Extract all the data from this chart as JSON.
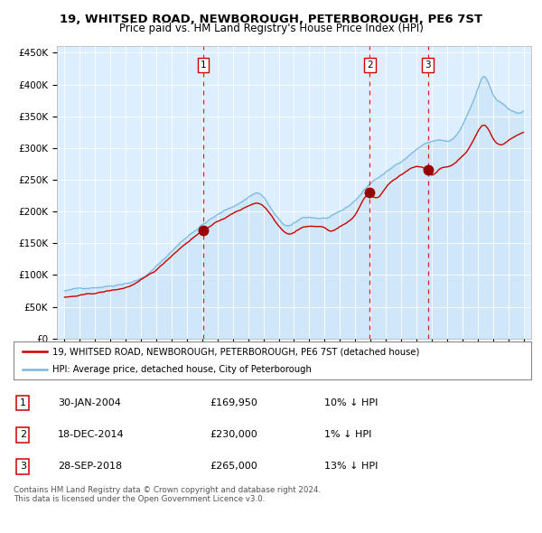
{
  "title": "19, WHITSED ROAD, NEWBOROUGH, PETERBOROUGH, PE6 7ST",
  "subtitle": "Price paid vs. HM Land Registry's House Price Index (HPI)",
  "background_color": "#ddeeff",
  "hpi_color": "#7ab8e0",
  "price_color": "#cc0000",
  "sale_marker_color": "#990000",
  "vline_color": "#cc0000",
  "sales": [
    {
      "label": "1",
      "date_num": 2004.08,
      "price": 169950
    },
    {
      "label": "2",
      "date_num": 2014.96,
      "price": 230000
    },
    {
      "label": "3",
      "date_num": 2018.75,
      "price": 265000
    }
  ],
  "legend_entries": [
    "19, WHITSED ROAD, NEWBOROUGH, PETERBOROUGH, PE6 7ST (detached house)",
    "HPI: Average price, detached house, City of Peterborough"
  ],
  "table_rows": [
    [
      "1",
      "30-JAN-2004",
      "£169,950",
      "10% ↓ HPI"
    ],
    [
      "2",
      "18-DEC-2014",
      "£230,000",
      "1% ↓ HPI"
    ],
    [
      "3",
      "28-SEP-2018",
      "£265,000",
      "13% ↓ HPI"
    ]
  ],
  "footer": "Contains HM Land Registry data © Crown copyright and database right 2024.\nThis data is licensed under the Open Government Licence v3.0.",
  "ylim": [
    0,
    460000
  ],
  "xlim": [
    1994.5,
    2025.5
  ],
  "yticks": [
    0,
    50000,
    100000,
    150000,
    200000,
    250000,
    300000,
    350000,
    400000,
    450000
  ],
  "ytick_labels": [
    "£0",
    "£50K",
    "£100K",
    "£150K",
    "£200K",
    "£250K",
    "£300K",
    "£350K",
    "£400K",
    "£450K"
  ],
  "xtick_years": [
    1995,
    1996,
    1997,
    1998,
    1999,
    2000,
    2001,
    2002,
    2003,
    2004,
    2005,
    2006,
    2007,
    2008,
    2009,
    2010,
    2011,
    2012,
    2013,
    2014,
    2015,
    2016,
    2017,
    2018,
    2019,
    2020,
    2021,
    2022,
    2023,
    2024,
    2025
  ]
}
